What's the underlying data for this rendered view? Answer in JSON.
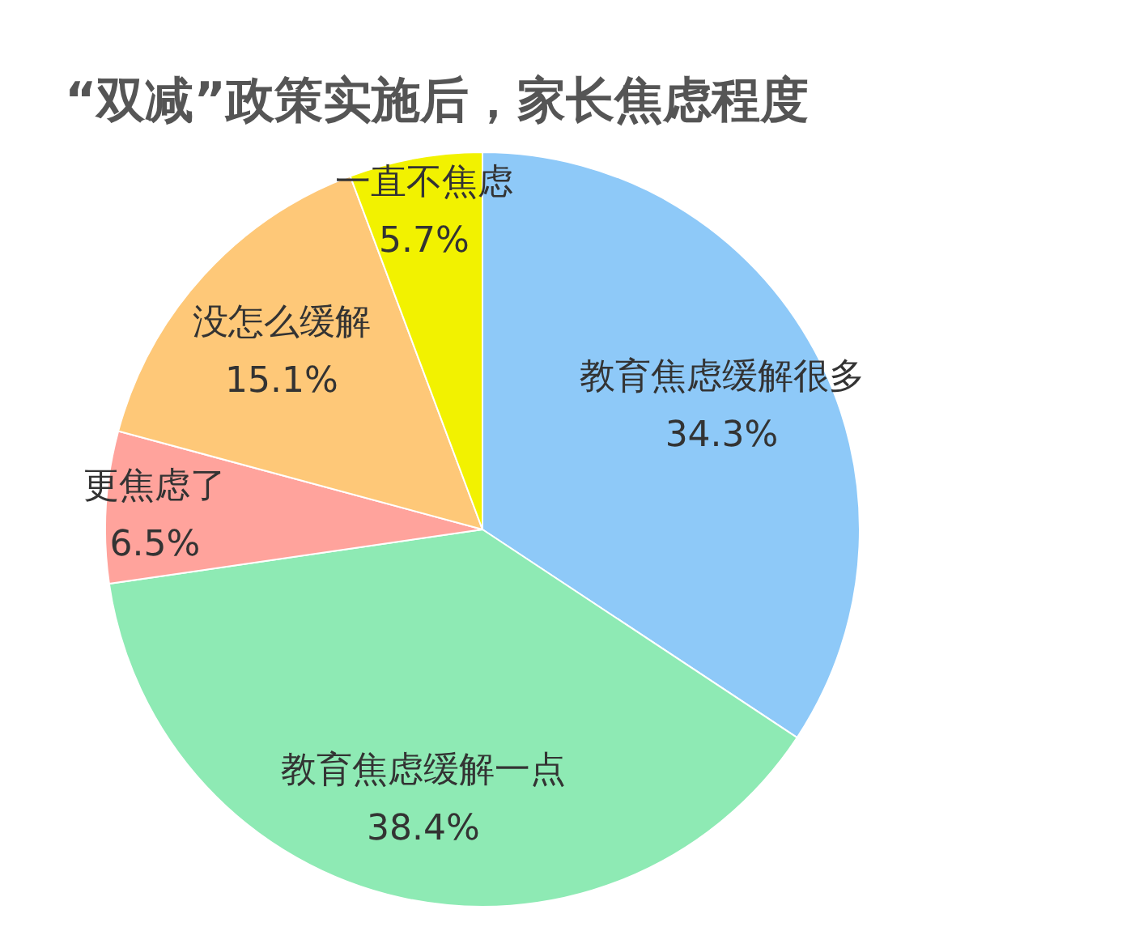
{
  "chart_data": {
    "type": "pie",
    "title": "“双减”政策实施后，家长焦虑程度",
    "categories": [
      "教育焦虑缓解很多",
      "教育焦虑缓解一点",
      "更焦虑了",
      "没怎么缓解",
      "一直不焦虑"
    ],
    "values": [
      34.3,
      38.4,
      6.5,
      15.1,
      5.7
    ],
    "value_labels": [
      "34.3%",
      "38.4%",
      "6.5%",
      "15.1%",
      "5.7%"
    ],
    "colors": [
      "#8ec9f8",
      "#8eeab4",
      "#ffa39c",
      "#fec878",
      "#f2f200"
    ]
  }
}
